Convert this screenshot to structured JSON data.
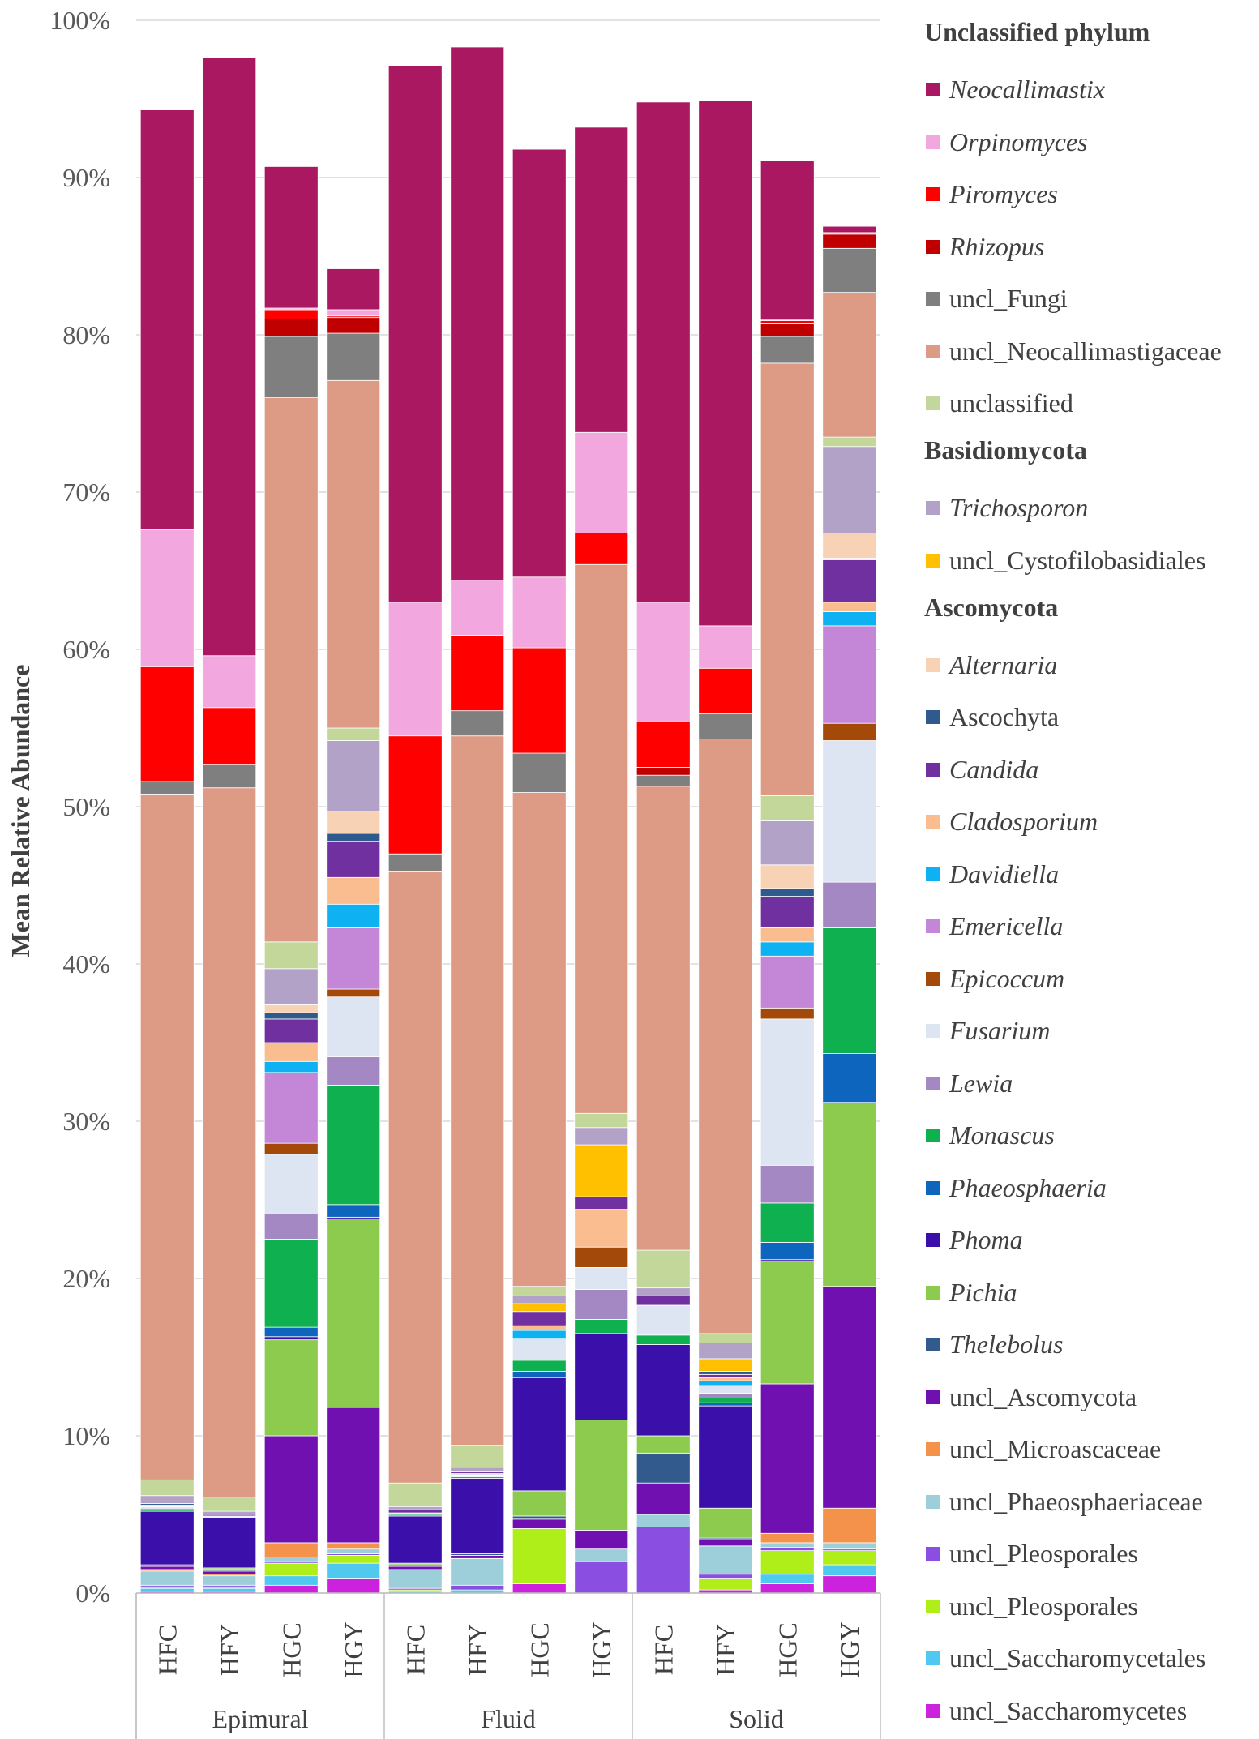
{
  "chart_data": {
    "type": "bar",
    "stacked": true,
    "title": "",
    "xlabel": "",
    "ylabel": "Mean Relative Abundance",
    "ylim": [
      0,
      100
    ],
    "y_ticks": [
      "0%",
      "10%",
      "20%",
      "30%",
      "40%",
      "50%",
      "60%",
      "70%",
      "80%",
      "90%",
      "100%"
    ],
    "groups": [
      {
        "name": "Epimural",
        "categories": [
          "HFC",
          "HFY",
          "HGC",
          "HGY"
        ]
      },
      {
        "name": "Fluid",
        "categories": [
          "HFC",
          "HFY",
          "HGC",
          "HGY"
        ]
      },
      {
        "name": "Solid",
        "categories": [
          "HFC",
          "HFY",
          "HGC",
          "HGY"
        ]
      }
    ],
    "legend_groups": [
      {
        "name": "Unclassified phylum",
        "series": [
          "Neocallimastix",
          "Orpinomyces",
          "Piromyces",
          "Rhizopus",
          "uncl_Fungi",
          "uncl_Neocallimastigaceae",
          "unclassified"
        ]
      },
      {
        "name": "Basidiomycota",
        "series": [
          "Trichosporon",
          "uncl_Cystofilobasidiales"
        ]
      },
      {
        "name": "Ascomycota",
        "series": [
          "Alternaria",
          "Ascochyta",
          "Candida",
          "Cladosporium",
          "Davidiella",
          "Emericella",
          "Epicoccum",
          "Fusarium",
          "Lewia",
          "Monascus",
          "Phaeosphaeria",
          "Phoma",
          "Pichia",
          "Thelebolus",
          "uncl_Ascomycota",
          "uncl_Microascaceae",
          "uncl_Phaeosphaeriaceae",
          "uncl_Pleosporales",
          "uncl_Pleosporales ",
          "uncl_Saccharomycetales",
          "uncl_Saccharomycetes"
        ]
      }
    ],
    "series": [
      {
        "name": "uncl_Saccharomycetes",
        "italic": false,
        "color": "#CC22DD",
        "values": [
          0.1,
          0.1,
          0.5,
          0.9,
          0,
          0,
          0.6,
          0,
          0,
          0.2,
          0.6,
          1.1
        ]
      },
      {
        "name": "uncl_Saccharomycetales",
        "italic": false,
        "color": "#4FC9EF",
        "values": [
          0.2,
          0.2,
          0.6,
          1.0,
          0.1,
          0.2,
          0,
          0,
          0,
          0,
          0.6,
          0.7
        ]
      },
      {
        "name": "uncl_Pleosporales ",
        "italic": false,
        "color": "#B0EE1A",
        "values": [
          0.1,
          0.1,
          0.8,
          0.5,
          0.1,
          0,
          3.5,
          0,
          0,
          0.7,
          1.5,
          0.9
        ]
      },
      {
        "name": "uncl_Pleosporales",
        "italic": false,
        "color": "#8A4FE0",
        "values": [
          0.1,
          0.1,
          0.1,
          0.1,
          0.1,
          0.3,
          0,
          2.0,
          4.2,
          0.3,
          0.2,
          0.1
        ]
      },
      {
        "name": "uncl_Phaeosphaeriaceae",
        "italic": false,
        "color": "#9DCFDB",
        "values": [
          0.9,
          0.6,
          0.3,
          0.3,
          1.2,
          1.7,
          0,
          0.8,
          0.8,
          1.8,
          0.3,
          0.4
        ]
      },
      {
        "name": "uncl_Microascaceae",
        "italic": false,
        "color": "#F4914B",
        "values": [
          0.1,
          0.1,
          0.9,
          0.4,
          0,
          0,
          0,
          0,
          0,
          0,
          0.6,
          2.2
        ]
      },
      {
        "name": "uncl_Ascomycota",
        "italic": false,
        "color": "#7010B0",
        "values": [
          0.2,
          0.2,
          6.8,
          8.6,
          0.2,
          0.2,
          0.6,
          1.2,
          2.0,
          0.4,
          9.5,
          14.1
        ]
      },
      {
        "name": "Thelebolus",
        "italic": false,
        "color": "#335A8C",
        "values": [
          0.1,
          0.1,
          0,
          0,
          0.1,
          0.1,
          0.2,
          0,
          1.9,
          0.1,
          0,
          0
        ]
      },
      {
        "name": "Pichia",
        "italic": false,
        "color": "#8CCB4E",
        "values": [
          0,
          0.1,
          6.1,
          12.0,
          0.1,
          0,
          1.6,
          7.0,
          1.1,
          1.9,
          7.8,
          11.7
        ]
      },
      {
        "name": "Phoma",
        "italic": false,
        "color": "#3B0FAA",
        "values": [
          3.4,
          3.2,
          0.2,
          0.1,
          3.0,
          4.8,
          7.2,
          5.5,
          5.8,
          6.5,
          0.1,
          0
        ]
      },
      {
        "name": "Phaeosphaeria",
        "italic": false,
        "color": "#0E65BE",
        "values": [
          0,
          0,
          0.6,
          0.8,
          0,
          0,
          0.4,
          0,
          0,
          0.2,
          1.1,
          3.1
        ]
      },
      {
        "name": "Monascus",
        "italic": false,
        "color": "#0FB050",
        "values": [
          0.1,
          0,
          5.6,
          7.6,
          0.1,
          0.1,
          0.7,
          0.9,
          0.6,
          0.3,
          2.5,
          8.0
        ]
      },
      {
        "name": "Lewia",
        "italic": false,
        "color": "#A488C4",
        "values": [
          0.1,
          0,
          1.6,
          1.8,
          0,
          0.1,
          0,
          1.9,
          0,
          0.3,
          2.4,
          2.9
        ]
      },
      {
        "name": "Fusarium",
        "italic": false,
        "color": "#DDE5F2",
        "values": [
          0.1,
          0.1,
          3.8,
          3.8,
          0.1,
          0.1,
          1.4,
          1.4,
          1.9,
          0.5,
          9.3,
          9.0
        ]
      },
      {
        "name": "Epicoccum",
        "italic": false,
        "color": "#A34A0A",
        "values": [
          0,
          0,
          0.7,
          0.5,
          0,
          0,
          0,
          1.3,
          0,
          0,
          0.7,
          1.1
        ]
      },
      {
        "name": "Emericella",
        "italic": false,
        "color": "#C486D6",
        "values": [
          0,
          0,
          4.5,
          3.9,
          0,
          0,
          0,
          0,
          0,
          0,
          3.3,
          6.2
        ]
      },
      {
        "name": "Davidiella",
        "italic": false,
        "color": "#0EB2F2",
        "values": [
          0,
          0,
          0.7,
          1.5,
          0,
          0,
          0.5,
          0,
          0,
          0.3,
          0.9,
          0.9
        ]
      },
      {
        "name": "Cladosporium",
        "italic": false,
        "color": "#F9BD8F",
        "values": [
          0,
          0,
          1.2,
          1.7,
          0,
          0,
          0.3,
          2.4,
          0,
          0.2,
          0.9,
          0.6
        ]
      },
      {
        "name": "Candida",
        "italic": false,
        "color": "#7030A0",
        "values": [
          0.1,
          0.1,
          1.5,
          2.3,
          0.2,
          0.1,
          0.9,
          0.8,
          0.6,
          0.2,
          2.0,
          2.7
        ]
      },
      {
        "name": "Ascochyta",
        "italic": false,
        "color": "#2F5A8E",
        "values": [
          0.1,
          0,
          0.4,
          0.5,
          0,
          0,
          0,
          0,
          0,
          0.2,
          0.5,
          0.1
        ]
      },
      {
        "name": "Alternaria",
        "italic": false,
        "color": "#F8D2B4",
        "values": [
          0,
          0,
          0.5,
          1.4,
          0,
          0,
          0,
          0,
          0,
          0,
          1.5,
          1.6
        ]
      },
      {
        "name": "uncl_Cystofilobasidiales",
        "italic": false,
        "color": "#FFC000",
        "values": [
          0,
          0,
          0,
          0,
          0,
          0,
          0.5,
          3.3,
          0,
          0.8,
          0,
          0
        ]
      },
      {
        "name": "Trichosporon",
        "italic": false,
        "color": "#B3A2C7",
        "values": [
          0.5,
          0.2,
          2.3,
          4.5,
          0.2,
          0.3,
          0.5,
          1.1,
          0.5,
          1.0,
          2.8,
          5.5
        ]
      },
      {
        "name": "unclassified",
        "italic": false,
        "color": "#C4D79B",
        "values": [
          1.0,
          0.9,
          1.7,
          0.8,
          1.5,
          1.4,
          0.6,
          0.9,
          2.4,
          0.6,
          1.6,
          0.6
        ]
      },
      {
        "name": "uncl_Neocallimastigaceae",
        "italic": false,
        "color": "#DD9A84",
        "values": [
          43.6,
          45.1,
          34.6,
          22.1,
          38.9,
          45.1,
          31.4,
          34.9,
          29.5,
          37.8,
          27.5,
          9.2
        ]
      },
      {
        "name": "uncl_Fungi",
        "italic": false,
        "color": "#7F7F7F",
        "values": [
          0.8,
          1.5,
          3.9,
          3.0,
          1.1,
          1.6,
          2.5,
          0,
          0.7,
          1.6,
          1.7,
          2.8
        ]
      },
      {
        "name": "Rhizopus",
        "italic": false,
        "color": "#C00000",
        "values": [
          0,
          0,
          1.1,
          1.0,
          0,
          0,
          0,
          0,
          0.5,
          0,
          0.8,
          0.9
        ]
      },
      {
        "name": "Piromyces",
        "italic": false,
        "color": "#FF0000",
        "values": [
          7.3,
          3.6,
          0.6,
          0.1,
          7.5,
          4.8,
          6.7,
          2.0,
          2.9,
          2.9,
          0.2,
          0
        ]
      },
      {
        "name": "Orpinomyces",
        "italic": false,
        "color": "#F2A7DF",
        "values": [
          8.7,
          3.3,
          0.1,
          0.4,
          8.5,
          3.5,
          4.5,
          6.4,
          7.6,
          2.7,
          0.1,
          0.1
        ]
      },
      {
        "name": "Neocallimastix",
        "italic": false,
        "color": "#AB1862",
        "values": [
          26.7,
          38.0,
          9.0,
          2.6,
          34.1,
          33.9,
          27.2,
          19.4,
          31.8,
          33.4,
          10.1,
          0.4
        ]
      }
    ]
  },
  "legend_labels": {
    "h_unclassified": "Unclassified phylum",
    "neocallimastix": "Neocallimastix",
    "orpinomyces": "Orpinomyces",
    "piromyces": "Piromyces",
    "rhizopus": "Rhizopus",
    "uncl_fungi": "uncl_Fungi",
    "uncl_neocallimastigaceae": "uncl_Neocallimastigaceae",
    "unclassified": "unclassified",
    "h_basidiomycota": "Basidiomycota",
    "trichosporon": "Trichosporon",
    "uncl_cystofilobasidiales": "uncl_Cystofilobasidiales",
    "h_ascomycota": "Ascomycota",
    "alternaria": "Alternaria",
    "ascochyta": "Ascochyta",
    "candida": "Candida",
    "cladosporium": "Cladosporium",
    "davidiella": "Davidiella",
    "emericella": "Emericella",
    "epicoccum": "Epicoccum",
    "fusarium": "Fusarium",
    "lewia": "Lewia",
    "monascus": "Monascus",
    "phaeosphaeria": "Phaeosphaeria",
    "phoma": "Phoma",
    "pichia": "Pichia",
    "thelebolus": "Thelebolus",
    "uncl_ascomycota": "uncl_Ascomycota",
    "uncl_microascaceae": "uncl_Microascaceae",
    "uncl_phaeosphaeriaceae": "uncl_Phaeosphaeriaceae",
    "uncl_pleosporales_a": "uncl_Pleosporales",
    "uncl_pleosporales_b": "uncl_Pleosporales",
    "uncl_saccharomycetales": "uncl_Saccharomycetales",
    "uncl_saccharomycetes": "uncl_Saccharomycetes"
  },
  "legend_colors": {
    "neocallimastix": "#AB1862",
    "orpinomyces": "#F2A7DF",
    "piromyces": "#FF0000",
    "rhizopus": "#C00000",
    "uncl_fungi": "#7F7F7F",
    "uncl_neocallimastigaceae": "#DD9A84",
    "unclassified": "#C4D79B",
    "trichosporon": "#B3A2C7",
    "uncl_cystofilobasidiales": "#FFC000",
    "alternaria": "#F8D2B4",
    "ascochyta": "#2F5A8E",
    "candida": "#7030A0",
    "cladosporium": "#F9BD8F",
    "davidiella": "#0EB2F2",
    "emericella": "#C486D6",
    "epicoccum": "#A34A0A",
    "fusarium": "#DDE5F2",
    "lewia": "#A488C4",
    "monascus": "#0FB050",
    "phaeosphaeria": "#0E65BE",
    "phoma": "#3B0FAA",
    "pichia": "#8CCB4E",
    "thelebolus": "#335A8C",
    "uncl_ascomycota": "#7010B0",
    "uncl_microascaceae": "#F4914B",
    "uncl_phaeosphaeriaceae": "#9DCFDB",
    "uncl_pleosporales_a": "#8A4FE0",
    "uncl_pleosporales_b": "#B0EE1A",
    "uncl_saccharomycetales": "#4FC9EF",
    "uncl_saccharomycetes": "#CC22DD"
  }
}
